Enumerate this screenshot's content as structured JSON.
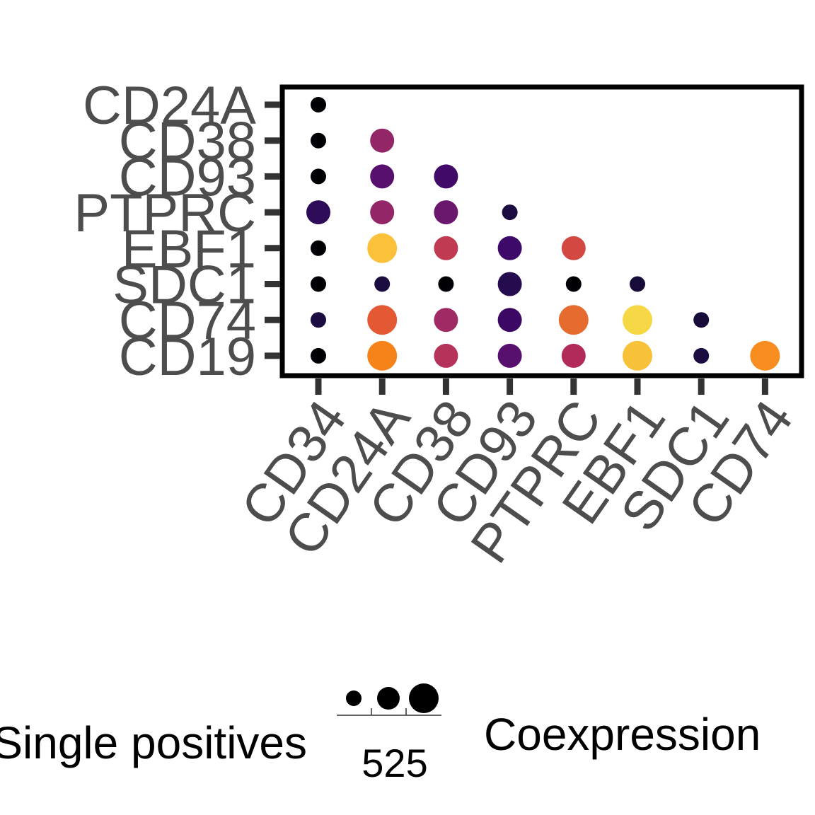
{
  "chart_data": {
    "type": "scatter",
    "x_categories": [
      "CD34",
      "CD24A",
      "CD38",
      "CD93",
      "PTPRC",
      "EBF1",
      "SDC1",
      "CD74"
    ],
    "y_categories": [
      "CD24A",
      "CD38",
      "CD93",
      "PTPRC",
      "EBF1",
      "SDC1",
      "CD74",
      "CD19"
    ],
    "points": [
      {
        "x": "CD34",
        "y": "CD24A",
        "size": "small",
        "color": "#000004"
      },
      {
        "x": "CD34",
        "y": "CD38",
        "size": "small",
        "color": "#000004"
      },
      {
        "x": "CD24A",
        "y": "CD38",
        "size": "large",
        "color": "#932667"
      },
      {
        "x": "CD34",
        "y": "CD93",
        "size": "small",
        "color": "#000004"
      },
      {
        "x": "CD24A",
        "y": "CD93",
        "size": "large",
        "color": "#57106e"
      },
      {
        "x": "CD38",
        "y": "CD93",
        "size": "large",
        "color": "#420a68"
      },
      {
        "x": "CD34",
        "y": "PTPRC",
        "size": "large",
        "color": "#2d0b59"
      },
      {
        "x": "CD24A",
        "y": "PTPRC",
        "size": "large",
        "color": "#932667"
      },
      {
        "x": "CD38",
        "y": "PTPRC",
        "size": "large",
        "color": "#6a176e"
      },
      {
        "x": "CD93",
        "y": "PTPRC",
        "size": "small",
        "color": "#1b0c41"
      },
      {
        "x": "CD34",
        "y": "EBF1",
        "size": "small",
        "color": "#000004"
      },
      {
        "x": "CD24A",
        "y": "EBF1",
        "size": "xlarge",
        "color": "#fbc13a"
      },
      {
        "x": "CD38",
        "y": "EBF1",
        "size": "large",
        "color": "#c03a51"
      },
      {
        "x": "CD93",
        "y": "EBF1",
        "size": "large",
        "color": "#3e0a69"
      },
      {
        "x": "PTPRC",
        "y": "EBF1",
        "size": "large",
        "color": "#d44842"
      },
      {
        "x": "CD34",
        "y": "SDC1",
        "size": "small",
        "color": "#000004"
      },
      {
        "x": "CD24A",
        "y": "SDC1",
        "size": "small",
        "color": "#1b0c41"
      },
      {
        "x": "CD38",
        "y": "SDC1",
        "size": "small",
        "color": "#000004"
      },
      {
        "x": "CD93",
        "y": "SDC1",
        "size": "large",
        "color": "#240c4f"
      },
      {
        "x": "PTPRC",
        "y": "SDC1",
        "size": "small",
        "color": "#000004"
      },
      {
        "x": "EBF1",
        "y": "SDC1",
        "size": "small",
        "color": "#160b39"
      },
      {
        "x": "CD34",
        "y": "CD74",
        "size": "small",
        "color": "#1b0c41"
      },
      {
        "x": "CD24A",
        "y": "CD74",
        "size": "xlarge",
        "color": "#e35933"
      },
      {
        "x": "CD38",
        "y": "CD74",
        "size": "large",
        "color": "#a02a63"
      },
      {
        "x": "CD93",
        "y": "CD74",
        "size": "large",
        "color": "#3b0964"
      },
      {
        "x": "PTPRC",
        "y": "CD74",
        "size": "xlarge",
        "color": "#e56b2e"
      },
      {
        "x": "EBF1",
        "y": "CD74",
        "size": "xlarge",
        "color": "#f6d746"
      },
      {
        "x": "SDC1",
        "y": "CD74",
        "size": "small",
        "color": "#160b39"
      },
      {
        "x": "CD34",
        "y": "CD19",
        "size": "small",
        "color": "#000004"
      },
      {
        "x": "CD24A",
        "y": "CD19",
        "size": "xlarge",
        "color": "#f6821a"
      },
      {
        "x": "CD38",
        "y": "CD19",
        "size": "large",
        "color": "#b5325a"
      },
      {
        "x": "CD93",
        "y": "CD19",
        "size": "large",
        "color": "#57106e"
      },
      {
        "x": "PTPRC",
        "y": "CD19",
        "size": "large",
        "color": "#b12a5a"
      },
      {
        "x": "EBF1",
        "y": "CD19",
        "size": "xlarge",
        "color": "#f8c13a"
      },
      {
        "x": "SDC1",
        "y": "CD19",
        "size": "small",
        "color": "#1b0c41"
      },
      {
        "x": "CD74",
        "y": "CD19",
        "size": "xlarge",
        "color": "#f78c1f"
      }
    ],
    "legend": {
      "size_title": "Single positives",
      "size_label": "525",
      "color_title": "Coexpression",
      "placement": "bottom"
    }
  }
}
